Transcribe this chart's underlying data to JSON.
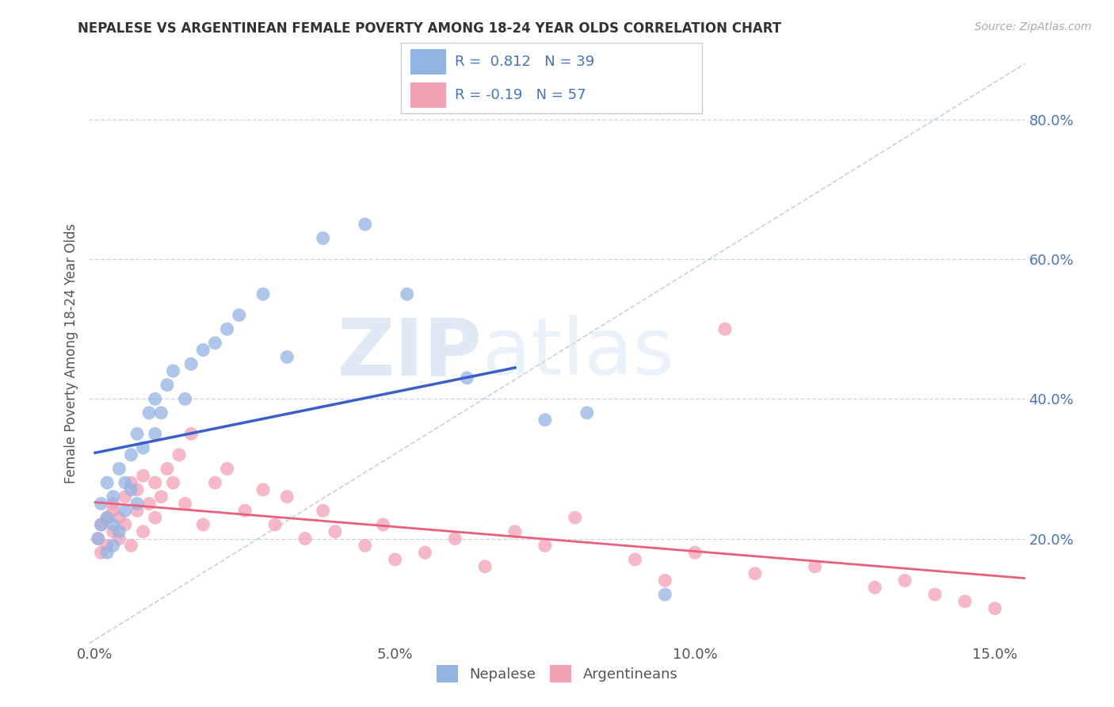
{
  "title": "NEPALESE VS ARGENTINEAN FEMALE POVERTY AMONG 18-24 YEAR OLDS CORRELATION CHART",
  "source": "Source: ZipAtlas.com",
  "ylabel": "Female Poverty Among 18-24 Year Olds",
  "xlim": [
    -0.001,
    0.155
  ],
  "ylim": [
    0.05,
    0.88
  ],
  "xticks": [
    0.0,
    0.05,
    0.1,
    0.15
  ],
  "xticklabels": [
    "0.0%",
    "5.0%",
    "10.0%",
    "15.0%"
  ],
  "yticks": [
    0.2,
    0.4,
    0.6,
    0.8
  ],
  "yticklabels": [
    "20.0%",
    "40.0%",
    "60.0%",
    "80.0%"
  ],
  "nepalese_R": 0.812,
  "nepalese_N": 39,
  "argentinean_R": -0.19,
  "argentinean_N": 57,
  "color_nepalese": "#92b4e3",
  "color_argentinean": "#f4a0b5",
  "color_blue_line": "#3a5fc8",
  "color_pink_line": "#e8607a",
  "color_diag": "#b8c8d8",
  "legend_label_nepalese": "Nepalese",
  "legend_label_argentinean": "Argentineans",
  "watermark_zip": "ZIP",
  "watermark_atlas": "atlas",
  "background_color": "#ffffff",
  "grid_color": "#c8d8ea",
  "nepalese_x": [
    0.0005,
    0.001,
    0.001,
    0.002,
    0.002,
    0.002,
    0.003,
    0.003,
    0.003,
    0.004,
    0.004,
    0.005,
    0.005,
    0.006,
    0.006,
    0.007,
    0.007,
    0.008,
    0.009,
    0.01,
    0.01,
    0.011,
    0.012,
    0.013,
    0.015,
    0.016,
    0.018,
    0.02,
    0.022,
    0.024,
    0.028,
    0.032,
    0.038,
    0.045,
    0.052,
    0.062,
    0.075,
    0.082,
    0.095
  ],
  "nepalese_y": [
    0.2,
    0.22,
    0.25,
    0.18,
    0.23,
    0.28,
    0.19,
    0.22,
    0.26,
    0.21,
    0.3,
    0.24,
    0.28,
    0.32,
    0.27,
    0.25,
    0.35,
    0.33,
    0.38,
    0.35,
    0.4,
    0.38,
    0.42,
    0.44,
    0.4,
    0.45,
    0.47,
    0.48,
    0.5,
    0.52,
    0.55,
    0.46,
    0.63,
    0.65,
    0.55,
    0.43,
    0.37,
    0.38,
    0.12
  ],
  "argentinean_x": [
    0.0005,
    0.001,
    0.001,
    0.002,
    0.002,
    0.003,
    0.003,
    0.003,
    0.004,
    0.004,
    0.005,
    0.005,
    0.006,
    0.006,
    0.007,
    0.007,
    0.008,
    0.008,
    0.009,
    0.01,
    0.01,
    0.011,
    0.012,
    0.013,
    0.014,
    0.015,
    0.016,
    0.018,
    0.02,
    0.022,
    0.025,
    0.028,
    0.03,
    0.032,
    0.035,
    0.038,
    0.04,
    0.045,
    0.048,
    0.05,
    0.055,
    0.06,
    0.065,
    0.07,
    0.075,
    0.08,
    0.09,
    0.095,
    0.1,
    0.105,
    0.11,
    0.12,
    0.13,
    0.135,
    0.14,
    0.145,
    0.15
  ],
  "argentinean_y": [
    0.2,
    0.22,
    0.18,
    0.23,
    0.19,
    0.24,
    0.21,
    0.25,
    0.2,
    0.23,
    0.22,
    0.26,
    0.19,
    0.28,
    0.24,
    0.27,
    0.21,
    0.29,
    0.25,
    0.23,
    0.28,
    0.26,
    0.3,
    0.28,
    0.32,
    0.25,
    0.35,
    0.22,
    0.28,
    0.3,
    0.24,
    0.27,
    0.22,
    0.26,
    0.2,
    0.24,
    0.21,
    0.19,
    0.22,
    0.17,
    0.18,
    0.2,
    0.16,
    0.21,
    0.19,
    0.23,
    0.17,
    0.14,
    0.18,
    0.5,
    0.15,
    0.16,
    0.13,
    0.14,
    0.12,
    0.11,
    0.1
  ]
}
